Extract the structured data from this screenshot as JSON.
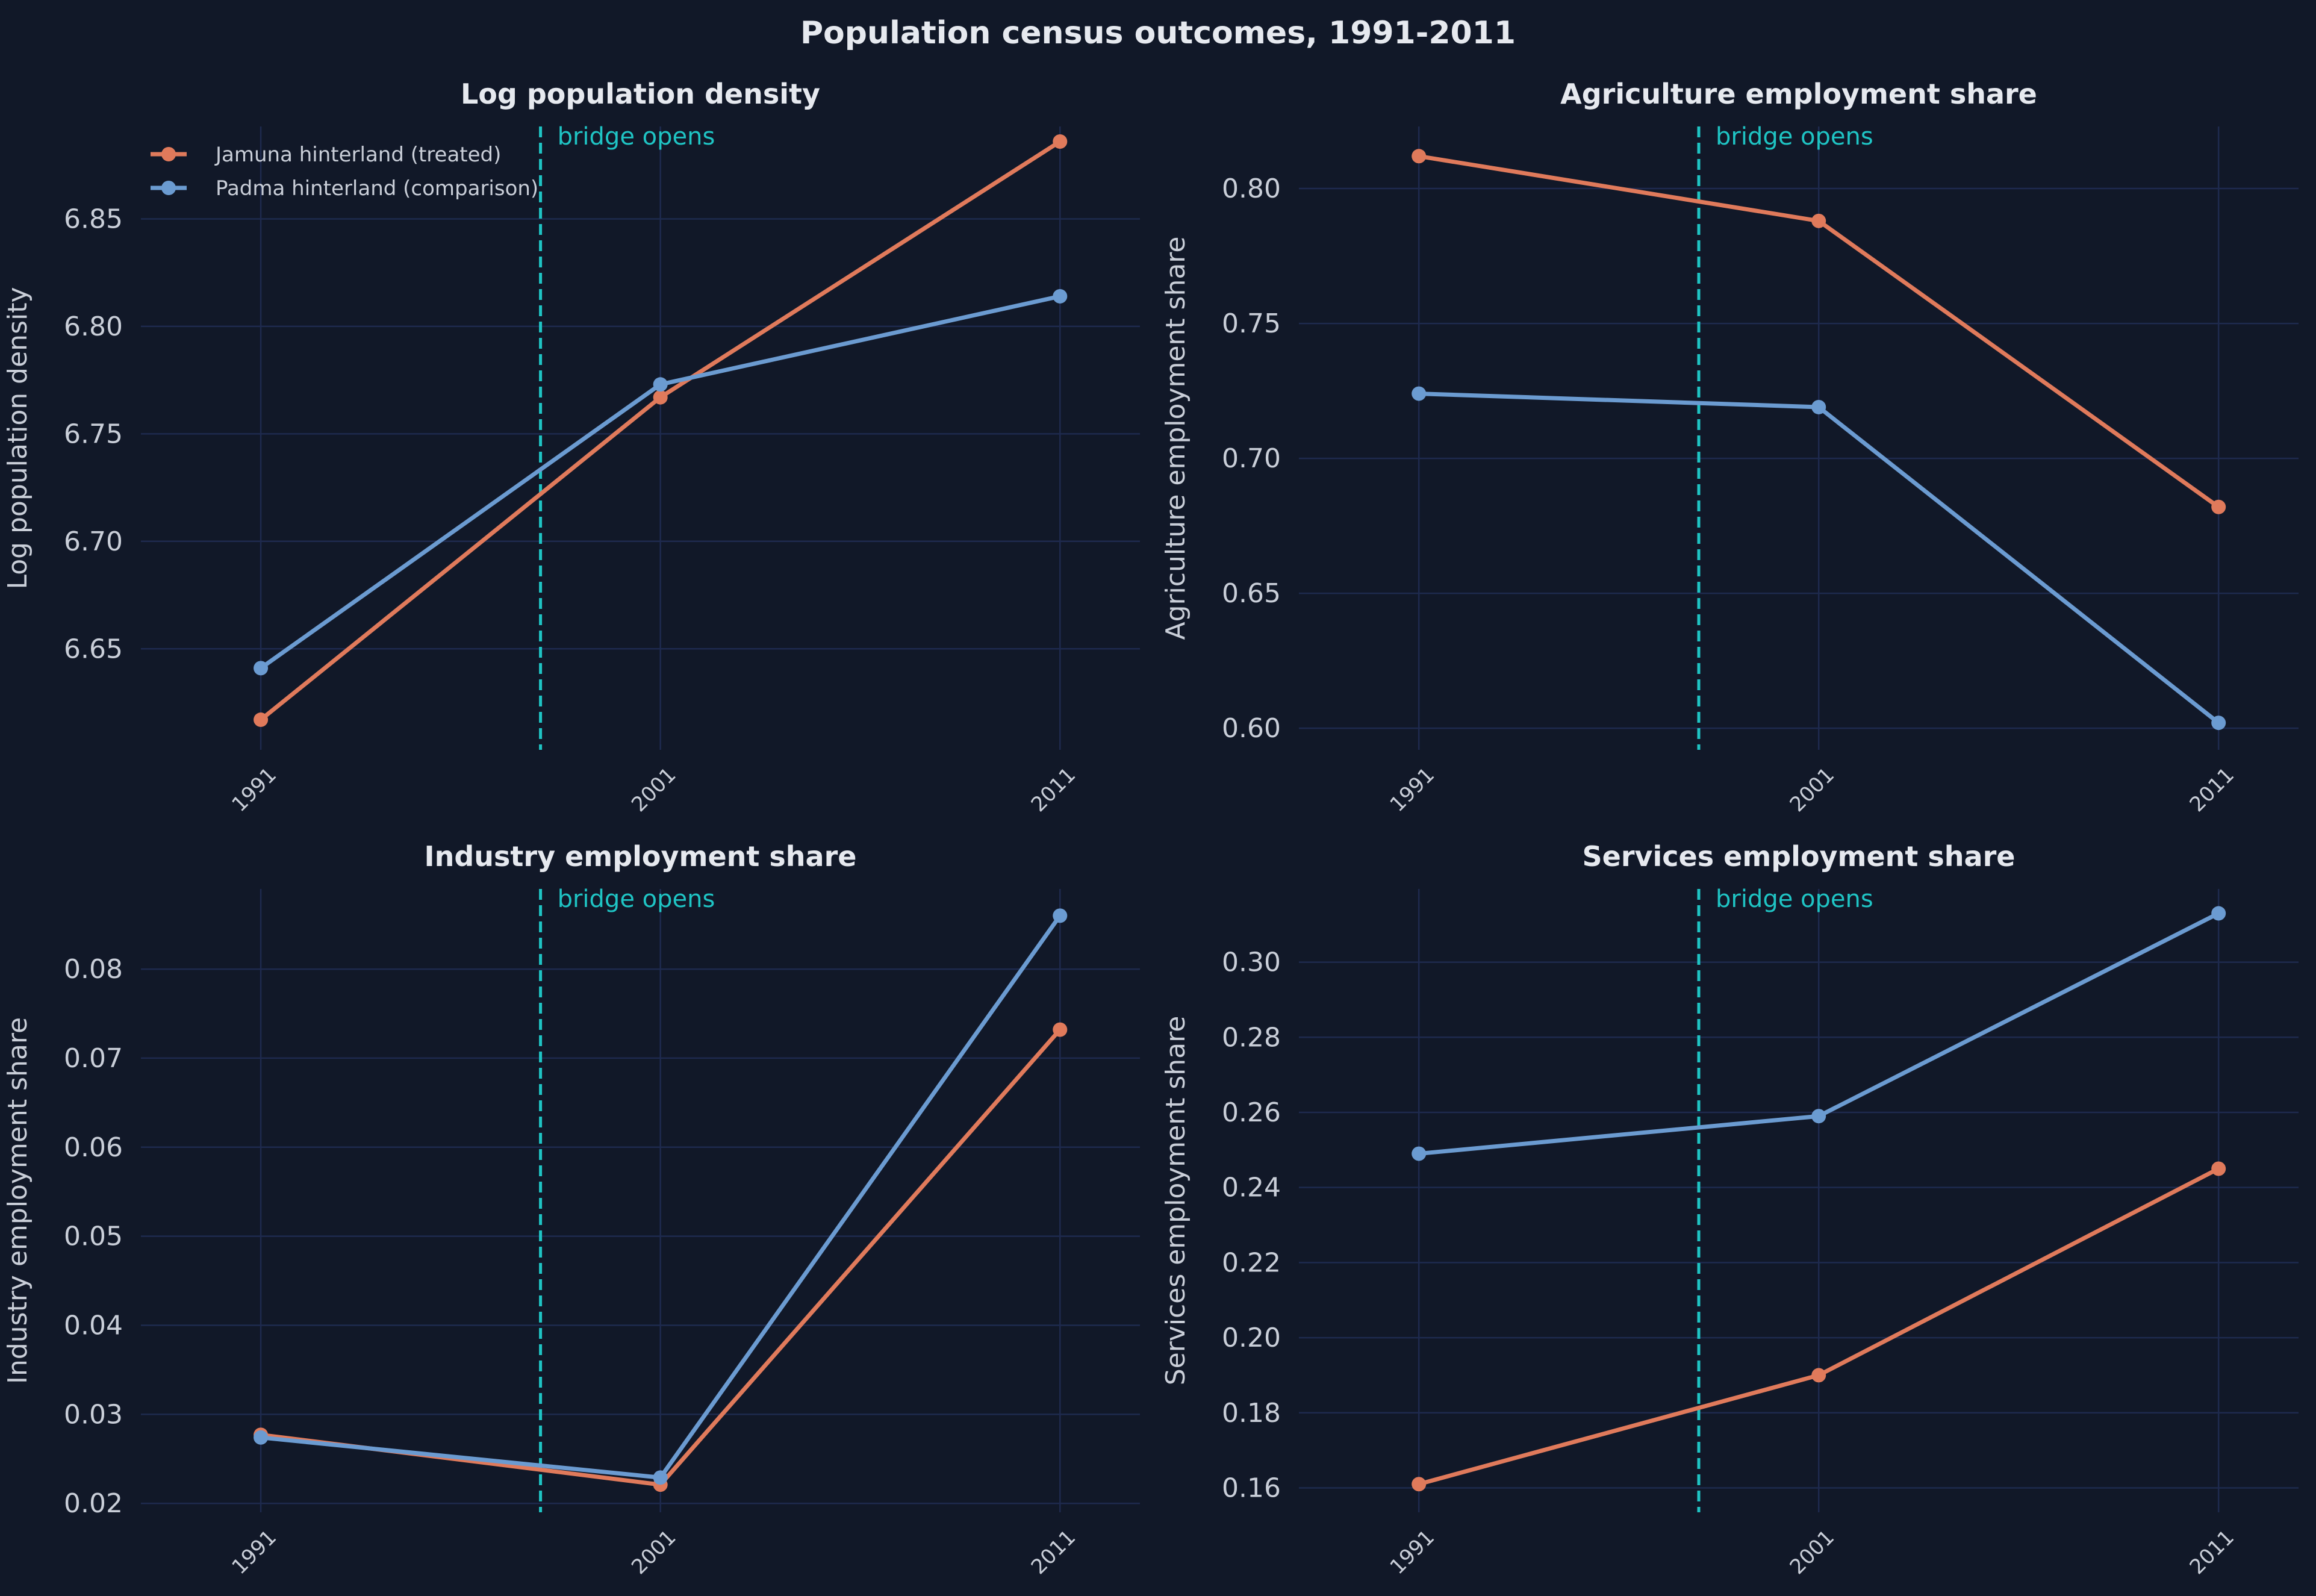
{
  "figure_title": "Population census outcomes, 1991-2011",
  "colors": {
    "background": "#111828",
    "treated": "#e07a5b",
    "comparison": "#6b9bd1",
    "vline": "#1fc4c4",
    "grid": "#1e2a4e",
    "text": "#e6e9ef"
  },
  "legend": {
    "placement": "top-left (first panel)",
    "entries": [
      "Jamuna hinterland (treated)",
      "Padma hinterland (comparison)"
    ]
  },
  "chart_data": [
    {
      "type": "line",
      "title": "Log population density",
      "xlabel": "",
      "ylabel": "Log population density",
      "x": [
        1991,
        2001,
        2011
      ],
      "xticks": [
        "1991",
        "2001",
        "2011"
      ],
      "yticks": [
        "6.65",
        "6.70",
        "6.75",
        "6.80",
        "6.85"
      ],
      "ylim": [
        6.603,
        6.893
      ],
      "vline": {
        "x": 1998,
        "label": "bridge opens"
      },
      "grid": true,
      "series": [
        {
          "name": "Jamuna hinterland (treated)",
          "values": [
            6.617,
            6.767,
            6.886
          ]
        },
        {
          "name": "Padma hinterland (comparison)",
          "values": [
            6.641,
            6.773,
            6.814
          ]
        }
      ]
    },
    {
      "type": "line",
      "title": "Agriculture employment share",
      "xlabel": "",
      "ylabel": "Agriculture employment share",
      "x": [
        1991,
        2001,
        2011
      ],
      "xticks": [
        "1991",
        "2001",
        "2011"
      ],
      "yticks": [
        "0.60",
        "0.65",
        "0.70",
        "0.75",
        "0.80"
      ],
      "ylim": [
        0.592,
        0.823
      ],
      "vline": {
        "x": 1998,
        "label": "bridge opens"
      },
      "grid": true,
      "series": [
        {
          "name": "Jamuna hinterland (treated)",
          "values": [
            0.812,
            0.788,
            0.682
          ]
        },
        {
          "name": "Padma hinterland (comparison)",
          "values": [
            0.724,
            0.719,
            0.602
          ]
        }
      ]
    },
    {
      "type": "line",
      "title": "Industry employment share",
      "xlabel": "",
      "ylabel": "Industry employment share",
      "x": [
        1991,
        2001,
        2011
      ],
      "xticks": [
        "1991",
        "2001",
        "2011"
      ],
      "yticks": [
        "0.02",
        "0.03",
        "0.04",
        "0.05",
        "0.06",
        "0.07",
        "0.08"
      ],
      "ylim": [
        0.019,
        0.089
      ],
      "vline": {
        "x": 1998,
        "label": "bridge opens"
      },
      "grid": true,
      "series": [
        {
          "name": "Jamuna hinterland (treated)",
          "values": [
            0.0277,
            0.0221,
            0.0732
          ]
        },
        {
          "name": "Padma hinterland (comparison)",
          "values": [
            0.0274,
            0.0229,
            0.086
          ]
        }
      ]
    },
    {
      "type": "line",
      "title": "Services employment share",
      "xlabel": "",
      "ylabel": "Services employment share",
      "x": [
        1991,
        2001,
        2011
      ],
      "xticks": [
        "1991",
        "2001",
        "2011"
      ],
      "yticks": [
        "0.16",
        "0.18",
        "0.20",
        "0.22",
        "0.24",
        "0.26",
        "0.28",
        "0.30"
      ],
      "ylim": [
        0.1535,
        0.3195
      ],
      "vline": {
        "x": 1998,
        "label": "bridge opens"
      },
      "grid": true,
      "series": [
        {
          "name": "Jamuna hinterland (treated)",
          "values": [
            0.161,
            0.19,
            0.245
          ]
        },
        {
          "name": "Padma hinterland (comparison)",
          "values": [
            0.249,
            0.259,
            0.313
          ]
        }
      ]
    }
  ]
}
